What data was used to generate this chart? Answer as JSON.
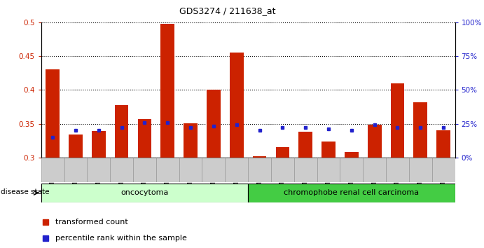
{
  "title": "GDS3274 / 211638_at",
  "samples": [
    "GSM305099",
    "GSM305100",
    "GSM305102",
    "GSM305107",
    "GSM305109",
    "GSM305110",
    "GSM305111",
    "GSM305112",
    "GSM305115",
    "GSM305101",
    "GSM305103",
    "GSM305104",
    "GSM305105",
    "GSM305106",
    "GSM305108",
    "GSM305113",
    "GSM305114",
    "GSM305116"
  ],
  "transformed_count": [
    0.43,
    0.334,
    0.339,
    0.378,
    0.357,
    0.498,
    0.351,
    0.4,
    0.455,
    0.302,
    0.315,
    0.338,
    0.324,
    0.308,
    0.348,
    0.41,
    0.382,
    0.34
  ],
  "percentile_rank_pct": [
    15,
    20,
    20,
    22,
    26,
    26,
    22,
    23,
    24,
    20,
    22,
    22,
    21,
    20,
    24,
    22,
    22,
    22
  ],
  "ylim_left": [
    0.3,
    0.5
  ],
  "ylim_right": [
    0,
    100
  ],
  "yticks_left": [
    0.3,
    0.35,
    0.4,
    0.45,
    0.5
  ],
  "yticks_right": [
    0,
    25,
    50,
    75,
    100
  ],
  "ytick_labels_right": [
    "0%",
    "25%",
    "50%",
    "75%",
    "100%"
  ],
  "bar_color": "#cc2200",
  "dot_color": "#2222cc",
  "oncocytoma_color": "#ccffcc",
  "carcinoma_color": "#44cc44",
  "oncocytoma_label": "oncocytoma",
  "carcinoma_label": "chromophobe renal cell carcinoma",
  "disease_state_label": "disease state",
  "legend_red": "transformed count",
  "legend_blue": "percentile rank within the sample",
  "n_oncocytoma": 9,
  "n_carcinoma": 9,
  "bg_color": "#ffffff",
  "tick_label_color_left": "#cc2200",
  "tick_label_color_right": "#2222cc",
  "bar_width": 0.6
}
